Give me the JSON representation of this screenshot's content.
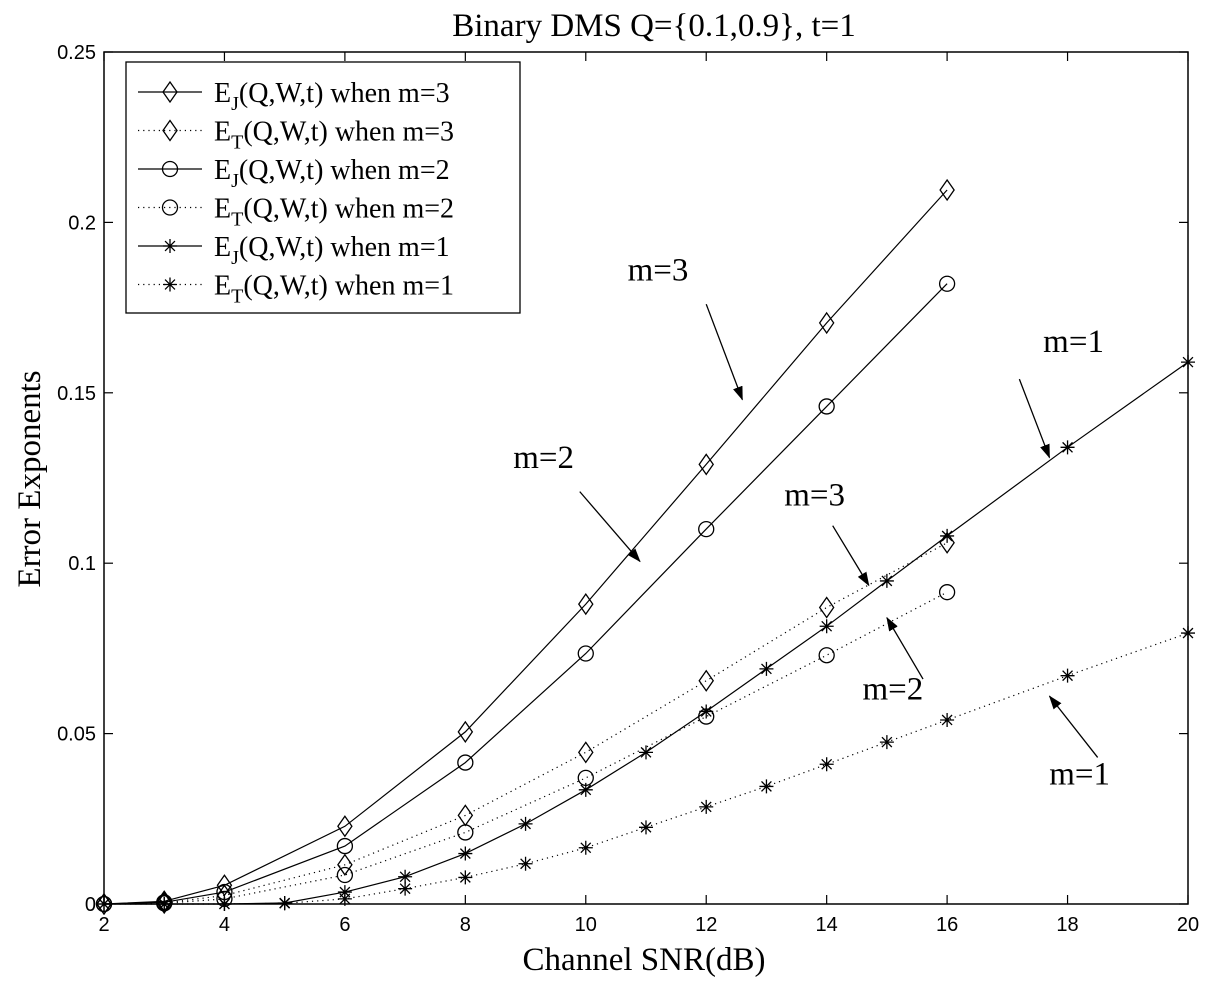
{
  "chart_data": {
    "type": "line",
    "title": "Binary DMS Q={0.1,0.9}, t=1",
    "xlabel": "Channel SNR(dB)",
    "ylabel": "Error Exponents",
    "xlim": [
      2,
      20
    ],
    "ylim": [
      0,
      0.25
    ],
    "xticks": [
      "2",
      "4",
      "6",
      "8",
      "10",
      "12",
      "14",
      "16",
      "18",
      "20"
    ],
    "yticks": [
      "0",
      "0.05",
      "0.1",
      "0.15",
      "0.2",
      "0.25"
    ],
    "grid": false,
    "legend_position": "top-left",
    "series": [
      {
        "legend_main": "E",
        "legend_sub": "J",
        "legend_rest": "(Q,W,t) when m=3",
        "marker": "diamond",
        "line": "solid",
        "points": [
          [
            2,
            0
          ],
          [
            3,
            0.0008
          ],
          [
            4,
            0.0055
          ],
          [
            6,
            0.0228
          ],
          [
            8,
            0.0505
          ],
          [
            10,
            0.088
          ],
          [
            12,
            0.129
          ],
          [
            14,
            0.1705
          ],
          [
            16,
            0.2095
          ]
        ]
      },
      {
        "legend_main": "E",
        "legend_sub": "T",
        "legend_rest": "(Q,W,t) when m=3",
        "marker": "diamond",
        "line": "dotted",
        "points": [
          [
            2,
            0
          ],
          [
            3,
            0.0003
          ],
          [
            4,
            0.0025
          ],
          [
            6,
            0.0115
          ],
          [
            8,
            0.026
          ],
          [
            10,
            0.0445
          ],
          [
            12,
            0.0655
          ],
          [
            14,
            0.087
          ],
          [
            16,
            0.106
          ]
        ]
      },
      {
        "legend_main": "E",
        "legend_sub": "J",
        "legend_rest": "(Q,W,t) when m=2",
        "marker": "circle",
        "line": "solid",
        "points": [
          [
            2,
            0
          ],
          [
            3,
            0.0005
          ],
          [
            4,
            0.0035
          ],
          [
            6,
            0.017
          ],
          [
            8,
            0.0415
          ],
          [
            10,
            0.0735
          ],
          [
            12,
            0.11
          ],
          [
            14,
            0.146
          ],
          [
            16,
            0.182
          ]
        ]
      },
      {
        "legend_main": "E",
        "legend_sub": "T",
        "legend_rest": "(Q,W,t) when m=2",
        "marker": "circle",
        "line": "dotted",
        "points": [
          [
            2,
            0
          ],
          [
            3,
            0.0002
          ],
          [
            4,
            0.0015
          ],
          [
            6,
            0.0085
          ],
          [
            8,
            0.021
          ],
          [
            10,
            0.037
          ],
          [
            12,
            0.055
          ],
          [
            14,
            0.073
          ],
          [
            16,
            0.0915
          ]
        ]
      },
      {
        "legend_main": "E",
        "legend_sub": "J",
        "legend_rest": "(Q,W,t) when m=1",
        "marker": "star",
        "line": "solid",
        "points": [
          [
            2,
            0
          ],
          [
            3,
            0
          ],
          [
            4,
            0
          ],
          [
            5,
            0.0003
          ],
          [
            6,
            0.0035
          ],
          [
            7,
            0.008
          ],
          [
            8,
            0.0148
          ],
          [
            9,
            0.0235
          ],
          [
            10,
            0.0335
          ],
          [
            11,
            0.0445
          ],
          [
            12,
            0.0565
          ],
          [
            13,
            0.069
          ],
          [
            14,
            0.0815
          ],
          [
            15,
            0.0948
          ],
          [
            16,
            0.108
          ],
          [
            18,
            0.134
          ],
          [
            20,
            0.159
          ]
        ]
      },
      {
        "legend_main": "E",
        "legend_sub": "T",
        "legend_rest": "(Q,W,t) when m=1",
        "marker": "star",
        "line": "dotted",
        "points": [
          [
            2,
            0
          ],
          [
            3,
            0
          ],
          [
            4,
            0
          ],
          [
            5,
            0.0002
          ],
          [
            6,
            0.0015
          ],
          [
            7,
            0.0045
          ],
          [
            8,
            0.0078
          ],
          [
            9,
            0.0118
          ],
          [
            10,
            0.0165
          ],
          [
            11,
            0.0225
          ],
          [
            12,
            0.0285
          ],
          [
            13,
            0.0345
          ],
          [
            14,
            0.041
          ],
          [
            15,
            0.0475
          ],
          [
            16,
            0.054
          ],
          [
            18,
            0.067
          ],
          [
            20,
            0.0795
          ]
        ]
      }
    ],
    "annotations": [
      {
        "text": "m=3",
        "text_at": [
          11.2,
          0.183
        ],
        "arrow_from": [
          12.0,
          0.176
        ],
        "arrow_to": [
          12.6,
          0.148
        ]
      },
      {
        "text": "m=2",
        "text_at": [
          9.3,
          0.128
        ],
        "arrow_from": [
          9.9,
          0.121
        ],
        "arrow_to": [
          10.9,
          0.1005
        ]
      },
      {
        "text": "m=1",
        "text_at": [
          18.1,
          0.162
        ],
        "arrow_from": [
          17.2,
          0.154
        ],
        "arrow_to": [
          17.7,
          0.131
        ]
      },
      {
        "text": "m=3",
        "text_at": [
          13.8,
          0.117
        ],
        "arrow_from": [
          14.1,
          0.111
        ],
        "arrow_to": [
          14.7,
          0.0935
        ]
      },
      {
        "text": "m=2",
        "text_at": [
          15.1,
          0.06
        ],
        "arrow_from": [
          15.6,
          0.066
        ],
        "arrow_to": [
          15.0,
          0.084
        ]
      },
      {
        "text": "m=1",
        "text_at": [
          18.2,
          0.035
        ],
        "arrow_from": [
          18.5,
          0.043
        ],
        "arrow_to": [
          17.7,
          0.061
        ]
      }
    ]
  }
}
